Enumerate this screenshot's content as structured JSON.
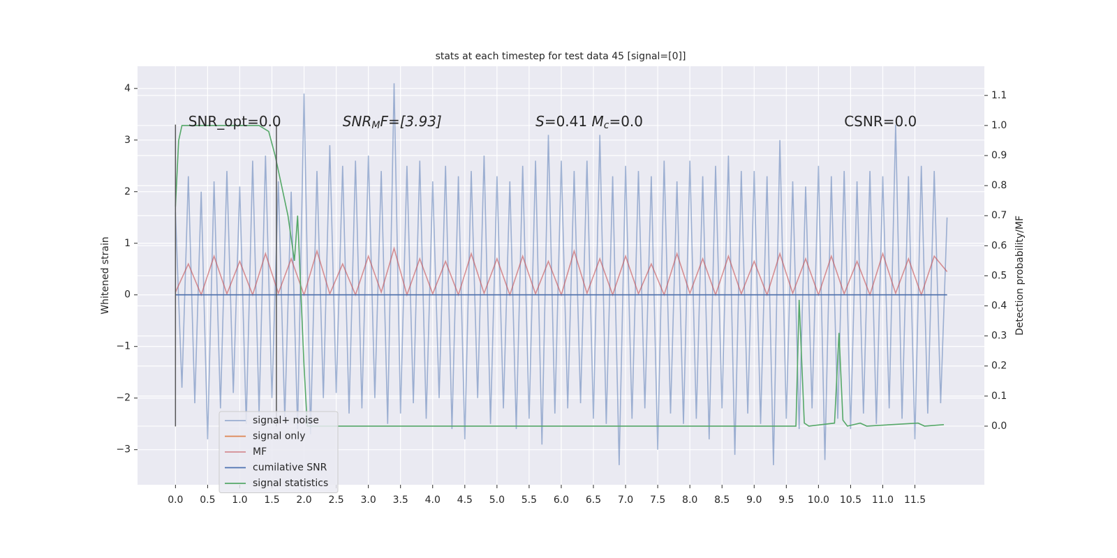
{
  "chart_data": {
    "type": "line",
    "title": "stats at each timestep for test data 45 [signal=[0]]",
    "ylabel": "Whitened strain",
    "y2label": "Detection probability/MF",
    "background": "#eaeaf2",
    "grid": true,
    "legend": "lower left",
    "xlim": [
      -0.59,
      12.58
    ],
    "ylim": [
      -3.68,
      4.43
    ],
    "y2lim": [
      -0.195,
      1.197
    ],
    "xticks": [
      {
        "value": 0,
        "label": "0.0"
      },
      {
        "value": 0.5,
        "label": "0.5"
      },
      {
        "value": 1,
        "label": "1.0"
      },
      {
        "value": 1.5,
        "label": "1.5"
      },
      {
        "value": 2,
        "label": "2.0"
      },
      {
        "value": 2.5,
        "label": "2.5"
      },
      {
        "value": 3,
        "label": "3.0"
      },
      {
        "value": 3.5,
        "label": "3.5"
      },
      {
        "value": 4,
        "label": "4.0"
      },
      {
        "value": 4.5,
        "label": "4.5"
      },
      {
        "value": 5,
        "label": "5.0"
      },
      {
        "value": 5.5,
        "label": "5.5"
      },
      {
        "value": 6,
        "label": "6.0"
      },
      {
        "value": 6.5,
        "label": "6.5"
      },
      {
        "value": 7,
        "label": "7.0"
      },
      {
        "value": 7.5,
        "label": "7.5"
      },
      {
        "value": 8,
        "label": "8.0"
      },
      {
        "value": 8.5,
        "label": "8.5"
      },
      {
        "value": 9,
        "label": "9.0"
      },
      {
        "value": 9.5,
        "label": "9.5"
      },
      {
        "value": 10,
        "label": "10.0"
      },
      {
        "value": 10.5,
        "label": "10.5"
      },
      {
        "value": 11,
        "label": "11.0"
      },
      {
        "value": 11.5,
        "label": "11.5"
      }
    ],
    "yticks": [
      {
        "value": -3,
        "label": "−3"
      },
      {
        "value": -2,
        "label": "−2"
      },
      {
        "value": -1,
        "label": "−1"
      },
      0,
      1,
      2,
      3,
      4
    ],
    "y2ticks": [
      {
        "value": 0,
        "label": "0.0"
      },
      {
        "value": 0.1,
        "label": "0.1"
      },
      {
        "value": 0.2,
        "label": "0.2"
      },
      {
        "value": 0.3,
        "label": "0.3"
      },
      {
        "value": 0.4,
        "label": "0.4"
      },
      {
        "value": 0.5,
        "label": "0.5"
      },
      {
        "value": 0.6,
        "label": "0.6"
      },
      {
        "value": 0.7,
        "label": "0.7"
      },
      {
        "value": 0.8,
        "label": "0.8"
      },
      {
        "value": 0.9,
        "label": "0.9"
      },
      {
        "value": 1,
        "label": "1.0"
      },
      {
        "value": 1.1,
        "label": "1.1"
      }
    ],
    "vlines": {
      "x": [
        0,
        1.57
      ],
      "ymin": -2.55,
      "ymax": 3.3,
      "color": "#555555"
    },
    "annotations": [
      {
        "x": 0.2,
        "y": 3.35,
        "parts": [
          "SNR_opt=0.0"
        ]
      },
      {
        "x": 2.6,
        "y": 3.35,
        "parts": [
          "SNR",
          "M",
          "F=[3.93]"
        ]
      },
      {
        "x": 5.6,
        "y": 3.35,
        "parts": [
          "S",
          "=0.41   ",
          "M",
          "c",
          "=0.0"
        ]
      },
      {
        "x": 10.4,
        "y": 3.35,
        "parts": [
          "CSNR=0.0"
        ]
      }
    ],
    "series": [
      {
        "name": "signal+ noise",
        "color": "#4c72b0",
        "opacity": 0.5,
        "x": [
          0,
          0.1,
          0.2,
          0.3,
          0.4,
          0.5,
          0.6,
          0.7,
          0.8,
          0.9,
          1,
          1.1,
          1.2,
          1.3,
          1.4,
          1.5,
          1.6,
          1.7,
          1.8,
          1.9,
          2,
          2.1,
          2.2,
          2.3,
          2.4,
          2.5,
          2.6,
          2.7,
          2.8,
          2.9,
          3,
          3.1,
          3.2,
          3.3,
          3.4,
          3.5,
          3.6,
          3.7,
          3.8,
          3.9,
          4,
          4.1,
          4.2,
          4.3,
          4.4,
          4.5,
          4.6,
          4.7,
          4.8,
          4.9,
          5,
          5.1,
          5.2,
          5.3,
          5.4,
          5.5,
          5.6,
          5.7,
          5.8,
          5.9,
          6,
          6.1,
          6.2,
          6.3,
          6.4,
          6.5,
          6.6,
          6.7,
          6.8,
          6.9,
          7,
          7.1,
          7.2,
          7.3,
          7.4,
          7.5,
          7.6,
          7.7,
          7.8,
          7.9,
          8,
          8.1,
          8.2,
          8.3,
          8.4,
          8.5,
          8.6,
          8.7,
          8.8,
          8.9,
          9,
          9.1,
          9.2,
          9.3,
          9.4,
          9.5,
          9.6,
          9.7,
          9.8,
          9.9,
          10,
          10.1,
          10.2,
          10.3,
          10.4,
          10.5,
          10.6,
          10.7,
          10.8,
          10.9,
          11,
          11.1,
          11.2,
          11.3,
          11.4,
          11.5,
          11.6,
          11.7,
          11.8,
          11.9,
          12
        ],
        "values": [
          1.6,
          -1.8,
          2.3,
          -2.1,
          2.0,
          -2.8,
          2.2,
          -2.2,
          2.4,
          -1.9,
          2.1,
          -2.5,
          2.6,
          -2.3,
          2.7,
          -2.0,
          2.2,
          -2.4,
          2.0,
          -2.6,
          3.9,
          -2.7,
          2.4,
          -2.0,
          2.9,
          -1.9,
          2.5,
          -2.3,
          2.6,
          -2.2,
          2.7,
          -2.0,
          2.4,
          -2.5,
          4.1,
          -2.3,
          2.5,
          -2.1,
          2.6,
          -2.4,
          2.2,
          -2.0,
          2.5,
          -2.6,
          2.3,
          -2.8,
          2.4,
          -2.0,
          2.7,
          -2.5,
          2.3,
          -2.2,
          2.2,
          -2.6,
          2.5,
          -2.4,
          2.6,
          -2.9,
          3.1,
          -2.3,
          2.6,
          -2.2,
          2.4,
          -2.1,
          2.6,
          -2.4,
          3.1,
          -2.5,
          2.3,
          -3.3,
          2.5,
          -2.4,
          2.4,
          -2.2,
          2.3,
          -3.0,
          2.6,
          -2.3,
          2.2,
          -2.5,
          2.6,
          -2.4,
          2.3,
          -2.8,
          2.5,
          -2.2,
          2.7,
          -3.1,
          2.4,
          -2.3,
          2.4,
          -2.5,
          2.3,
          -3.3,
          3.0,
          -2.4,
          2.2,
          -2.6,
          2.1,
          -2.2,
          2.5,
          -3.2,
          2.3,
          -2.4,
          2.4,
          -2.6,
          2.2,
          -2.3,
          2.4,
          -2.5,
          2.3,
          -2.2,
          3.3,
          -2.4,
          2.3,
          -2.8,
          2.5,
          -2.3,
          2.4,
          -2.1,
          1.5
        ]
      },
      {
        "name": "signal only",
        "color": "#dd8452",
        "opacity": 1,
        "x": [
          0,
          12
        ],
        "values": [
          0,
          0
        ]
      },
      {
        "name": "MF",
        "color": "#c44e52",
        "opacity": 0.6,
        "x": [
          0,
          0.2,
          0.4,
          0.6,
          0.8,
          1,
          1.2,
          1.4,
          1.6,
          1.8,
          2,
          2.2,
          2.4,
          2.6,
          2.8,
          3,
          3.2,
          3.4,
          3.6,
          3.8,
          4,
          4.2,
          4.4,
          4.6,
          4.8,
          5,
          5.2,
          5.4,
          5.6,
          5.8,
          6,
          6.2,
          6.4,
          6.6,
          6.8,
          7,
          7.2,
          7.4,
          7.6,
          7.8,
          8,
          8.2,
          8.4,
          8.6,
          8.8,
          9,
          9.2,
          9.4,
          9.6,
          9.8,
          10,
          10.2,
          10.4,
          10.6,
          10.8,
          11,
          11.2,
          11.4,
          11.6,
          11.8,
          12
        ],
        "values": [
          0.05,
          0.6,
          0.0,
          0.75,
          0.02,
          0.65,
          0.0,
          0.8,
          0.03,
          0.7,
          0.0,
          0.85,
          0.02,
          0.6,
          0.0,
          0.75,
          0.05,
          0.9,
          0.0,
          0.7,
          0.02,
          0.65,
          0.0,
          0.8,
          0.03,
          0.7,
          0.0,
          0.75,
          0.02,
          0.65,
          0.0,
          0.85,
          0.03,
          0.7,
          0.0,
          0.75,
          0.02,
          0.6,
          0.0,
          0.8,
          0.03,
          0.7,
          0.0,
          0.75,
          0.02,
          0.65,
          0.0,
          0.8,
          0.03,
          0.7,
          0.0,
          0.75,
          0.02,
          0.65,
          0.0,
          0.8,
          0.03,
          0.7,
          0.0,
          0.75,
          0.45
        ]
      },
      {
        "name": "cumilative SNR",
        "color": "#4c72b0",
        "opacity": 1,
        "x": [
          0,
          12
        ],
        "values": [
          0,
          0
        ]
      },
      {
        "name": "signal statistics",
        "color": "#55a868",
        "opacity": 1,
        "axis": "y2",
        "x": [
          0,
          0.05,
          0.1,
          1.3,
          1.45,
          1.55,
          1.65,
          1.75,
          1.85,
          1.9,
          1.95,
          2.0,
          2.05,
          9.65,
          9.7,
          9.78,
          9.85,
          10.25,
          10.32,
          10.38,
          10.45,
          10.65,
          10.75,
          11.55,
          11.65,
          11.95
        ],
        "values": [
          0.73,
          0.95,
          1.0,
          1.0,
          0.98,
          0.9,
          0.8,
          0.7,
          0.55,
          0.7,
          0.45,
          0.2,
          0.0,
          0.0,
          0.42,
          0.01,
          0.0,
          0.01,
          0.31,
          0.02,
          0.0,
          0.01,
          0.0,
          0.01,
          0.0,
          0.005
        ]
      }
    ]
  }
}
